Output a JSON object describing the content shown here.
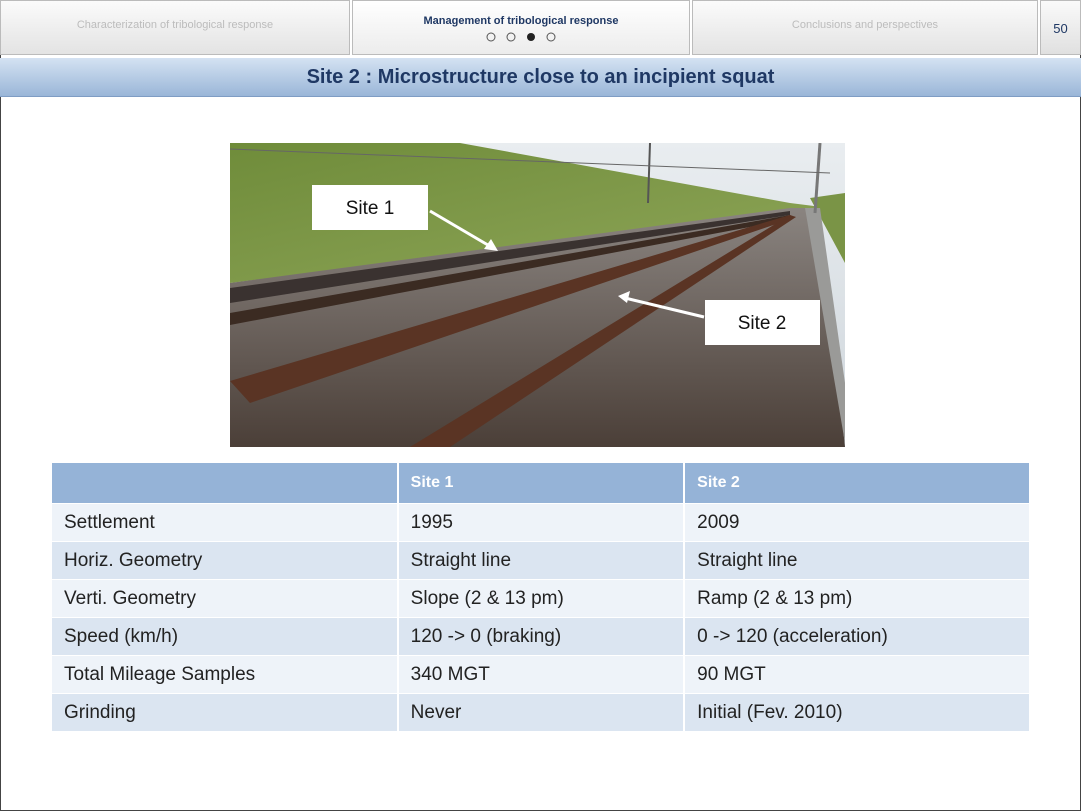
{
  "nav": {
    "tabs": [
      "Characterization of tribological response",
      "Management of tribological response",
      "Conclusions and perspectives"
    ],
    "active_tab": 1,
    "page_number": "50"
  },
  "slide": {
    "title": "Site 2 : Microstructure close to an incipient squat"
  },
  "figure": {
    "labels": [
      "Site 1",
      "Site 2"
    ]
  },
  "table": {
    "header": [
      "Site 1",
      "Site 2"
    ],
    "rows": [
      [
        "Settlement",
        "1995",
        "2009"
      ],
      [
        "Horiz. Geometry",
        "Straight  line",
        "Straight  line"
      ],
      [
        "Verti. Geometry",
        "Slope (2 & 13 pm)",
        "Ramp (2 & 13 pm)"
      ],
      [
        "Speed (km/h)",
        "120 -> 0 (braking)",
        "0 -> 120 (acceleration)"
      ],
      [
        "Total Mileage Samples",
        "340 MGT",
        "90 MGT"
      ],
      [
        "Grinding",
        "Never",
        "Initial (Fev. 2010)"
      ]
    ]
  }
}
